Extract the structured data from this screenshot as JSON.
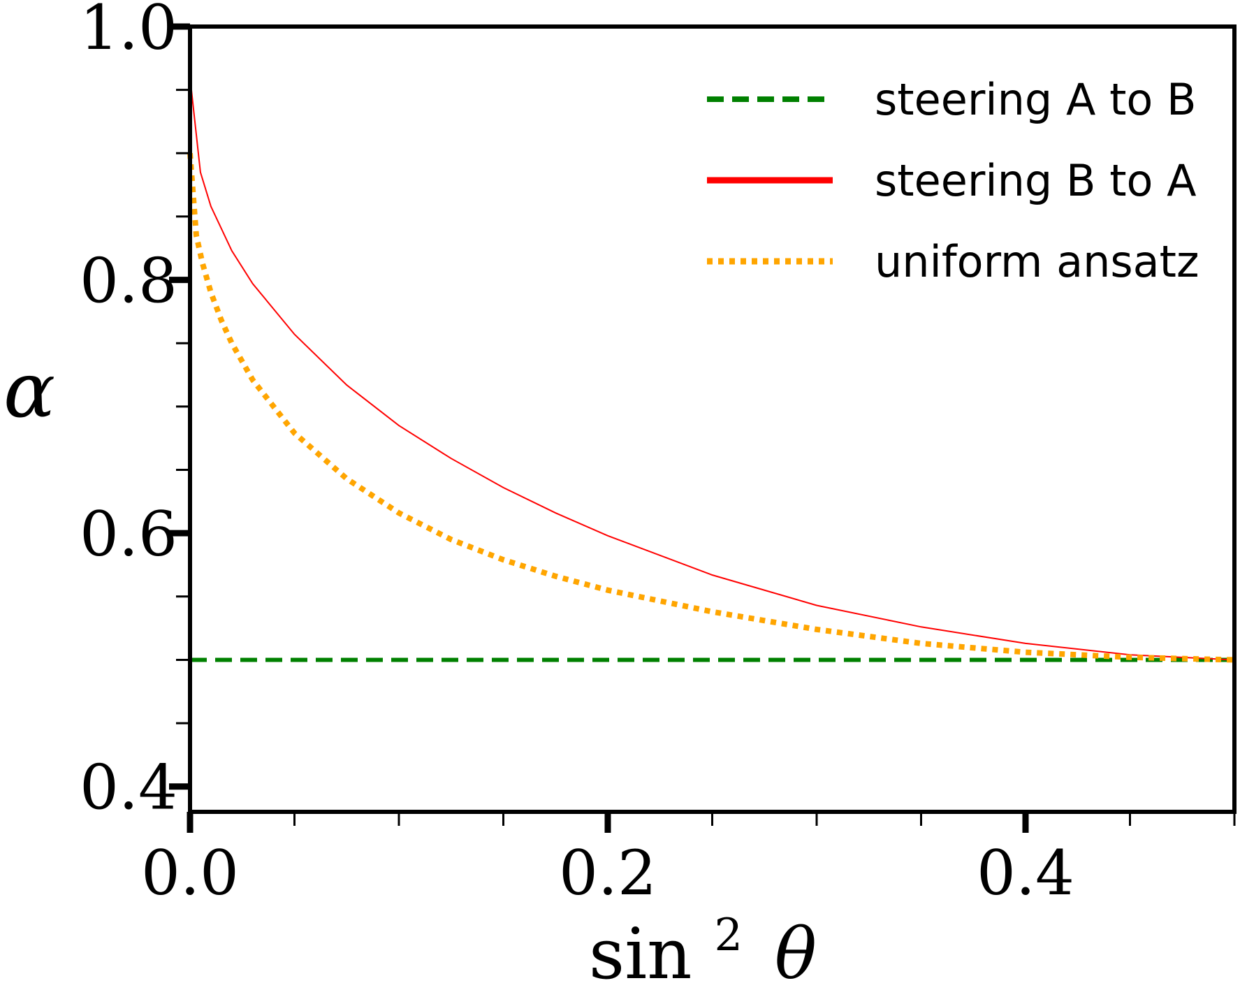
{
  "chart_data": {
    "type": "line",
    "title": "",
    "xlabel": "sin",
    "xlabel_sup": "2",
    "xlabel_var": "θ",
    "ylabel": "α",
    "xlim": [
      0.0,
      0.5
    ],
    "ylim": [
      0.38,
      1.0
    ],
    "xticks": [
      {
        "value": 0.0,
        "label": "0.0"
      },
      {
        "value": 0.2,
        "label": "0.2"
      },
      {
        "value": 0.4,
        "label": "0.4"
      }
    ],
    "yticks": [
      {
        "value": 0.4,
        "label": "0.4"
      },
      {
        "value": 0.6,
        "label": "0.6"
      },
      {
        "value": 0.8,
        "label": "0.8"
      },
      {
        "value": 1.0,
        "label": "1.0"
      }
    ],
    "x_minor_step": 0.05,
    "y_minor_step": 0.05,
    "legend_position": "top-right",
    "series": [
      {
        "name": "steering A to B",
        "color": "#008000",
        "style": "dashed",
        "x": [
          0.0,
          0.5
        ],
        "y": [
          0.5,
          0.5
        ]
      },
      {
        "name": "steering B to A",
        "color": "#ff0000",
        "style": "solid",
        "x": [
          0.0,
          0.005,
          0.01,
          0.02,
          0.03,
          0.05,
          0.075,
          0.1,
          0.125,
          0.15,
          0.175,
          0.2,
          0.25,
          0.3,
          0.35,
          0.4,
          0.45,
          0.5
        ],
        "y": [
          0.96,
          0.885,
          0.858,
          0.823,
          0.797,
          0.757,
          0.717,
          0.685,
          0.659,
          0.636,
          0.616,
          0.598,
          0.567,
          0.543,
          0.526,
          0.513,
          0.504,
          0.5
        ]
      },
      {
        "name": "uniform ansatz",
        "color": "#ffa500",
        "style": "dotted",
        "x": [
          0.0,
          0.003,
          0.006,
          0.01,
          0.015,
          0.02,
          0.03,
          0.05,
          0.075,
          0.1,
          0.125,
          0.15,
          0.175,
          0.2,
          0.25,
          0.3,
          0.35,
          0.4,
          0.45,
          0.5
        ],
        "y": [
          0.9,
          0.835,
          0.813,
          0.79,
          0.768,
          0.75,
          0.721,
          0.679,
          0.643,
          0.616,
          0.595,
          0.579,
          0.566,
          0.555,
          0.538,
          0.524,
          0.513,
          0.506,
          0.502,
          0.5
        ]
      }
    ]
  }
}
